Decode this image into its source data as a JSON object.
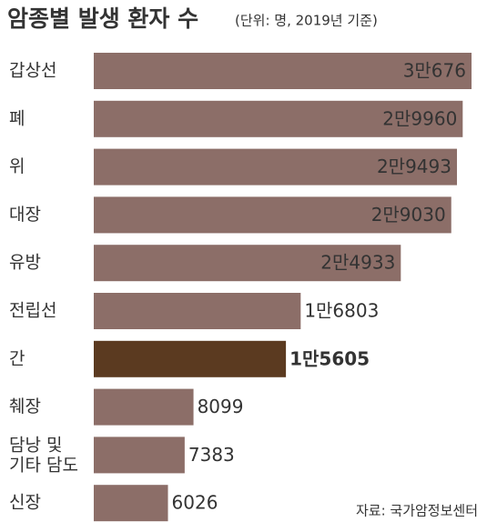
{
  "chart_data": {
    "type": "bar",
    "orientation": "horizontal",
    "title": "암종별 발생 환자 수",
    "subtitle": "(단위: 명, 2019년 기준)",
    "source": "자료: 국가암정보센터",
    "categories": [
      "갑상선",
      "폐",
      "위",
      "대장",
      "유방",
      "전립선",
      "간",
      "췌장",
      "담낭 및\n기타 담도",
      "신장"
    ],
    "values": [
      30676,
      29960,
      29493,
      29030,
      24933,
      16803,
      15605,
      8099,
      7383,
      6026
    ],
    "value_labels": [
      "3만676",
      "2만9960",
      "2만9493",
      "2만9030",
      "2만4933",
      "1만6803",
      "1만5605",
      "8099",
      "7383",
      "6026"
    ],
    "colors": [
      "#8c6e68",
      "#8c6e68",
      "#8c6e68",
      "#8c6e68",
      "#8c6e68",
      "#8c6e68",
      "#5b3a20",
      "#8c6e68",
      "#8c6e68",
      "#8c6e68"
    ],
    "value_label_colors": [
      "#ffffff",
      "#ffffff",
      "#ffffff",
      "#ffffff",
      "#ffffff",
      "#5a4038",
      "#8c1c2c",
      "#5a4038",
      "#5a4038",
      "#5a4038"
    ]
  }
}
